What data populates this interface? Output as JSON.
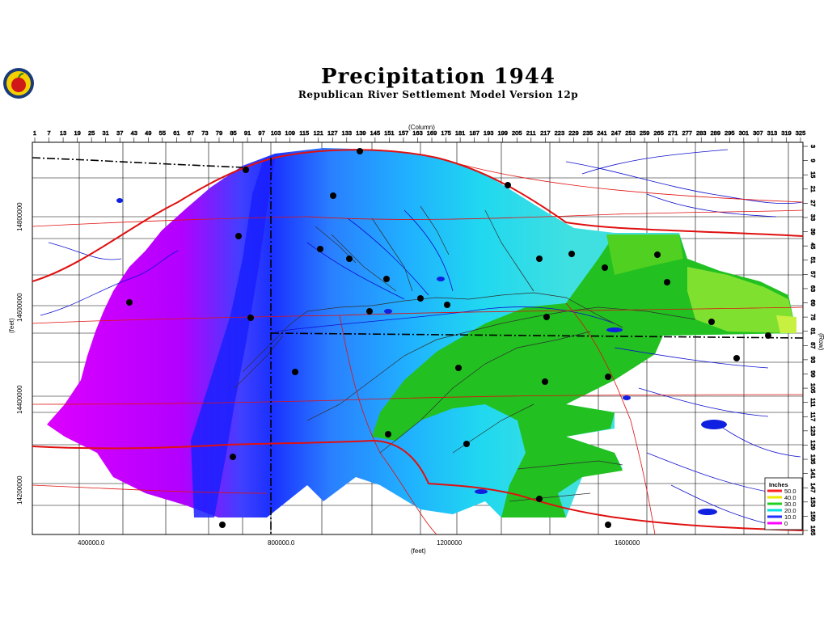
{
  "title": "Precipitation  1944",
  "subtitle": "Republican River Settlement Model Version 12p",
  "x_axis_top_label": "(Column)",
  "x_axis_bottom_label": "(feet)",
  "y_axis_left_label": "(feet)",
  "y_axis_right_label": "(Row)",
  "column_ticks": [
    "1",
    "7",
    "13",
    "19",
    "25",
    "31",
    "37",
    "43",
    "49",
    "55",
    "61",
    "67",
    "73",
    "79",
    "85",
    "91",
    "97",
    "103",
    "109",
    "115",
    "121",
    "127",
    "133",
    "139",
    "145",
    "151",
    "157",
    "163",
    "169",
    "175",
    "181",
    "187",
    "193",
    "199",
    "205",
    "211",
    "217",
    "223",
    "229",
    "235",
    "241",
    "247",
    "253",
    "259",
    "265",
    "271",
    "277",
    "283",
    "289",
    "295",
    "301",
    "307",
    "313",
    "319",
    "325"
  ],
  "row_ticks": [
    "3",
    "9",
    "15",
    "21",
    "27",
    "33",
    "39",
    "45",
    "51",
    "57",
    "63",
    "69",
    "75",
    "81",
    "87",
    "93",
    "99",
    "105",
    "111",
    "117",
    "123",
    "129",
    "135",
    "141",
    "147",
    "153",
    "159",
    "165"
  ],
  "easting_labels": [
    "400000.0",
    "800000.0",
    "1200000",
    "1600000"
  ],
  "northing_labels": [
    "14800000",
    "14600000",
    "14400000",
    "14200000"
  ],
  "legend": {
    "title": "Inches",
    "entries": [
      {
        "label": "50.0",
        "color": "#ff2020"
      },
      {
        "label": "40.0",
        "color": "#e8e800"
      },
      {
        "label": "30.0",
        "color": "#20d020"
      },
      {
        "label": "20.0",
        "color": "#00e0e0"
      },
      {
        "label": "10.0",
        "color": "#2030ff"
      },
      {
        "label": "0",
        "color": "#ff00ff"
      }
    ]
  },
  "colors": {
    "roads": "#e01010",
    "streams": "#1010d0",
    "boundary": "#000000",
    "wells": "#000000"
  }
}
